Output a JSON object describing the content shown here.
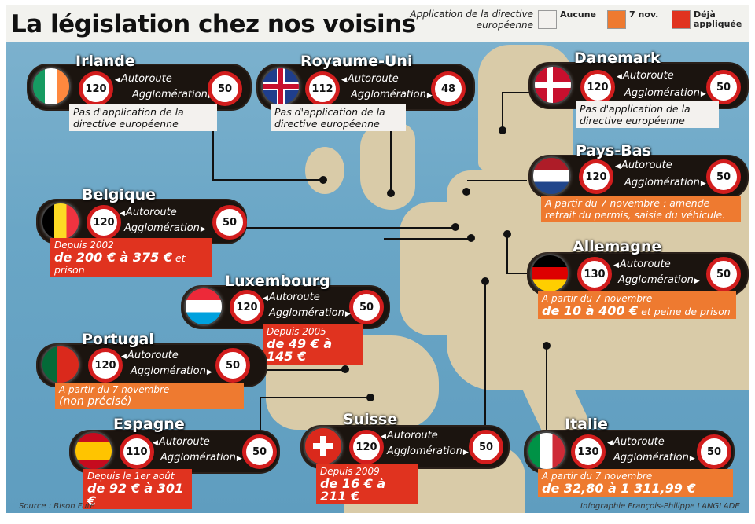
{
  "title": "La législation chez nos voisins",
  "legend": {
    "caption": "Application de la directive européenne",
    "items": [
      {
        "label": "Aucune",
        "color": "#f3f1ee"
      },
      {
        "label": "7 nov.",
        "color": "#ee7a30"
      },
      {
        "label": "Déjà appliquée",
        "color": "#e0331f"
      }
    ]
  },
  "labels": {
    "autoroute": "Autoroute",
    "agglomeration": "Agglomération"
  },
  "countries": {
    "irlande": {
      "name": "Irlande",
      "autoroute": "120",
      "agglomeration": "50",
      "note": "Pas d'application de la directive européenne"
    },
    "royaume_uni": {
      "name": "Royaume-Uni",
      "autoroute": "112",
      "agglomeration": "48",
      "note": "Pas d'application de la directive européenne"
    },
    "danemark": {
      "name": "Danemark",
      "autoroute": "120",
      "agglomeration": "50",
      "note": "Pas d'application de la directive européenne"
    },
    "pays_bas": {
      "name": "Pays-Bas",
      "autoroute": "120",
      "agglomeration": "50",
      "note": "A partir du 7 novembre : amende retrait du permis, saisie du véhicule."
    },
    "belgique": {
      "name": "Belgique",
      "autoroute": "120",
      "agglomeration": "50",
      "note_line1": "Depuis 2002",
      "note_amount": "de 200 € à 375 €",
      "note_suffix": "et prison"
    },
    "allemagne": {
      "name": "Allemagne",
      "autoroute": "130",
      "agglomeration": "50",
      "note_line1": "A partir du 7 novembre",
      "note_amount": "de 10 à 400 €",
      "note_suffix": "et peine de prison"
    },
    "luxembourg": {
      "name": "Luxembourg",
      "autoroute": "120",
      "agglomeration": "50",
      "note_line1": "Depuis 2005",
      "note_amount": "de 49 € à 145 €"
    },
    "portugal": {
      "name": "Portugal",
      "autoroute": "120",
      "agglomeration": "50",
      "note_line1": "A partir du 7 novembre",
      "note_line2": "(non précisé)"
    },
    "espagne": {
      "name": "Espagne",
      "autoroute": "110",
      "agglomeration": "50",
      "note_line1": "Depuis le 1er août",
      "note_amount": "de 92 € à 301 €"
    },
    "suisse": {
      "name": "Suisse",
      "autoroute": "120",
      "agglomeration": "50",
      "note_line1": "Depuis 2009",
      "note_amount": "de 16 € à 211 €"
    },
    "italie": {
      "name": "Italie",
      "autoroute": "130",
      "agglomeration": "50",
      "note_line1": "A partir du 7 novembre",
      "note_amount": "de 32,80 à 1 311,99 €"
    }
  },
  "source": "Source : Bison Futé",
  "credit": "Infographie François-Philippe LANGLADE"
}
